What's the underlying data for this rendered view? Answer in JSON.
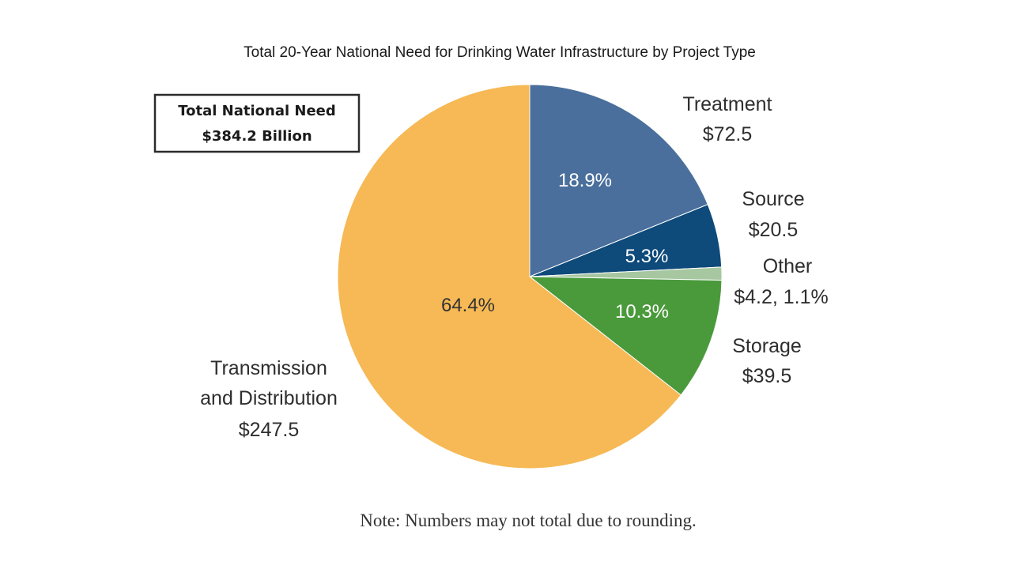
{
  "chart_data": {
    "type": "pie",
    "title": "Total 20-Year National Need for Drinking Water Infrastructure by Project Type",
    "total_box": {
      "line1": "Total National Need",
      "line2": "$384.2 Billion"
    },
    "slices": [
      {
        "name": "Treatment",
        "value": 72.5,
        "value_label": "$72.5",
        "percent": 18.9,
        "percent_label": "18.9%",
        "color": "#4a6f9c",
        "pct_color": "#ffffff"
      },
      {
        "name": "Source",
        "value": 20.5,
        "value_label": "$20.5",
        "percent": 5.3,
        "percent_label": "5.3%",
        "color": "#0e4a7a",
        "pct_color": "#ffffff"
      },
      {
        "name": "Other",
        "value": 4.2,
        "value_label": "$4.2, 1.1%",
        "percent": 1.1,
        "percent_label": "",
        "color": "#a6c7a0",
        "pct_color": "#ffffff"
      },
      {
        "name": "Storage",
        "value": 39.5,
        "value_label": "$39.5",
        "percent": 10.3,
        "percent_label": "10.3%",
        "color": "#4a9a3c",
        "pct_color": "#ffffff"
      },
      {
        "name": "Transmission and Distribution",
        "name_lines": [
          "Transmission",
          "and Distribution"
        ],
        "value": 247.5,
        "value_label": "$247.5",
        "percent": 64.4,
        "percent_label": "64.4%",
        "color": "#f6b955",
        "pct_color": "#333333"
      }
    ],
    "note": "Note: Numbers may not total due to rounding."
  }
}
